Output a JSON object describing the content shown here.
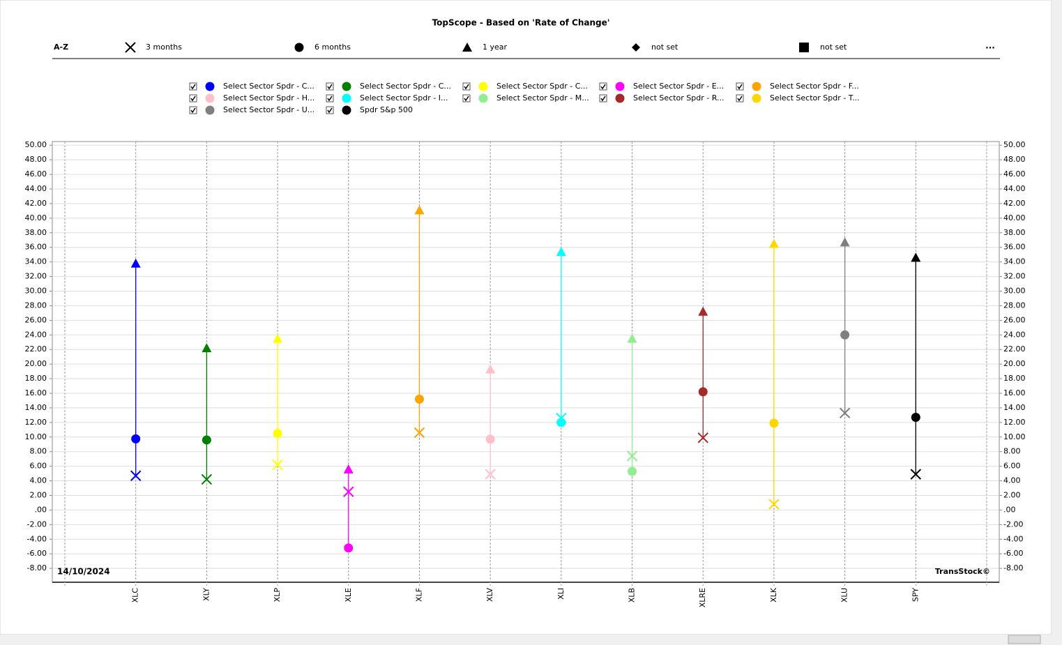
{
  "chart_data": {
    "type": "range-dot",
    "title": "TopScope - Based on 'Rate of Change'",
    "sort_label": "A-Z",
    "unset_labels": [
      "not set",
      "not set"
    ],
    "more_label": "...",
    "date": "14/10/2024",
    "brand": "TransStock©",
    "categories": [
      "XLC",
      "XLY",
      "XLP",
      "XLE",
      "XLF",
      "XLV",
      "XLI",
      "XLB",
      "XLRE",
      "XLK",
      "XLU",
      "SPY"
    ],
    "category_colors": [
      "#0000ff",
      "#008000",
      "#ffff00",
      "#ff00ff",
      "#ffa500",
      "#ffc0cb",
      "#00ffff",
      "#90ee90",
      "#a52a2a",
      "#ffd700",
      "#808080",
      "#000000"
    ],
    "series": [
      {
        "name": "3 months",
        "marker": "x",
        "values": [
          4.7,
          4.2,
          6.2,
          2.5,
          10.6,
          4.9,
          12.6,
          7.4,
          9.9,
          0.8,
          13.3,
          4.9
        ]
      },
      {
        "name": "6 months",
        "marker": "circle",
        "values": [
          9.75,
          9.6,
          10.5,
          -5.2,
          15.2,
          9.7,
          12.0,
          5.3,
          16.2,
          11.9,
          24.0,
          12.7
        ]
      },
      {
        "name": "1 year",
        "marker": "triangle",
        "values": [
          33.8,
          22.2,
          23.5,
          5.6,
          41.1,
          19.3,
          35.4,
          23.5,
          27.2,
          36.5,
          36.7,
          34.6
        ]
      }
    ],
    "legend": [
      {
        "name": "Select Sector Spdr - C...",
        "color": "#0000ff"
      },
      {
        "name": "Select Sector Spdr - C...",
        "color": "#008000"
      },
      {
        "name": "Select Sector Spdr - C...",
        "color": "#ffff00"
      },
      {
        "name": "Select Sector Spdr - E...",
        "color": "#ff00ff"
      },
      {
        "name": "Select Sector Spdr - F...",
        "color": "#ffa500"
      },
      {
        "name": "Select Sector Spdr - H...",
        "color": "#ffc0cb"
      },
      {
        "name": "Select Sector Spdr - I...",
        "color": "#00ffff"
      },
      {
        "name": "Select Sector Spdr - M...",
        "color": "#90ee90"
      },
      {
        "name": "Select Sector Spdr - R...",
        "color": "#a52a2a"
      },
      {
        "name": "Select Sector Spdr - T...",
        "color": "#ffd700"
      },
      {
        "name": "Select Sector Spdr - U...",
        "color": "#808080"
      },
      {
        "name": "Spdr S&p 500",
        "color": "#000000"
      }
    ],
    "ylim": [
      -9.9,
      50.5
    ],
    "yticks": [
      {
        "value": -8,
        "label": "-8.00"
      },
      {
        "value": -6,
        "label": "-6.00"
      },
      {
        "value": -4,
        "label": "-4.00"
      },
      {
        "value": -2,
        "label": "-2.00"
      },
      {
        "value": 0,
        "label": ".00"
      },
      {
        "value": 2,
        "label": "2.00"
      },
      {
        "value": 4,
        "label": "4.00"
      },
      {
        "value": 6,
        "label": "6.00"
      },
      {
        "value": 8,
        "label": "8.00"
      },
      {
        "value": 10,
        "label": "10.00"
      },
      {
        "value": 12,
        "label": "12.00"
      },
      {
        "value": 14,
        "label": "14.00"
      },
      {
        "value": 16,
        "label": "16.00"
      },
      {
        "value": 18,
        "label": "18.00"
      },
      {
        "value": 20,
        "label": "20.00"
      },
      {
        "value": 22,
        "label": "22.00"
      },
      {
        "value": 24,
        "label": "24.00"
      },
      {
        "value": 26,
        "label": "26.00"
      },
      {
        "value": 28,
        "label": "28.00"
      },
      {
        "value": 30,
        "label": "30.00"
      },
      {
        "value": 32,
        "label": "32.00"
      },
      {
        "value": 34,
        "label": "34.00"
      },
      {
        "value": 36,
        "label": "36.00"
      },
      {
        "value": 38,
        "label": "38.00"
      },
      {
        "value": 40,
        "label": "40.00"
      },
      {
        "value": 42,
        "label": "42.00"
      },
      {
        "value": 44,
        "label": "44.00"
      },
      {
        "value": 46,
        "label": "46.00"
      },
      {
        "value": 48,
        "label": "48.00"
      },
      {
        "value": 50,
        "label": "50.00"
      }
    ],
    "grid": true
  }
}
